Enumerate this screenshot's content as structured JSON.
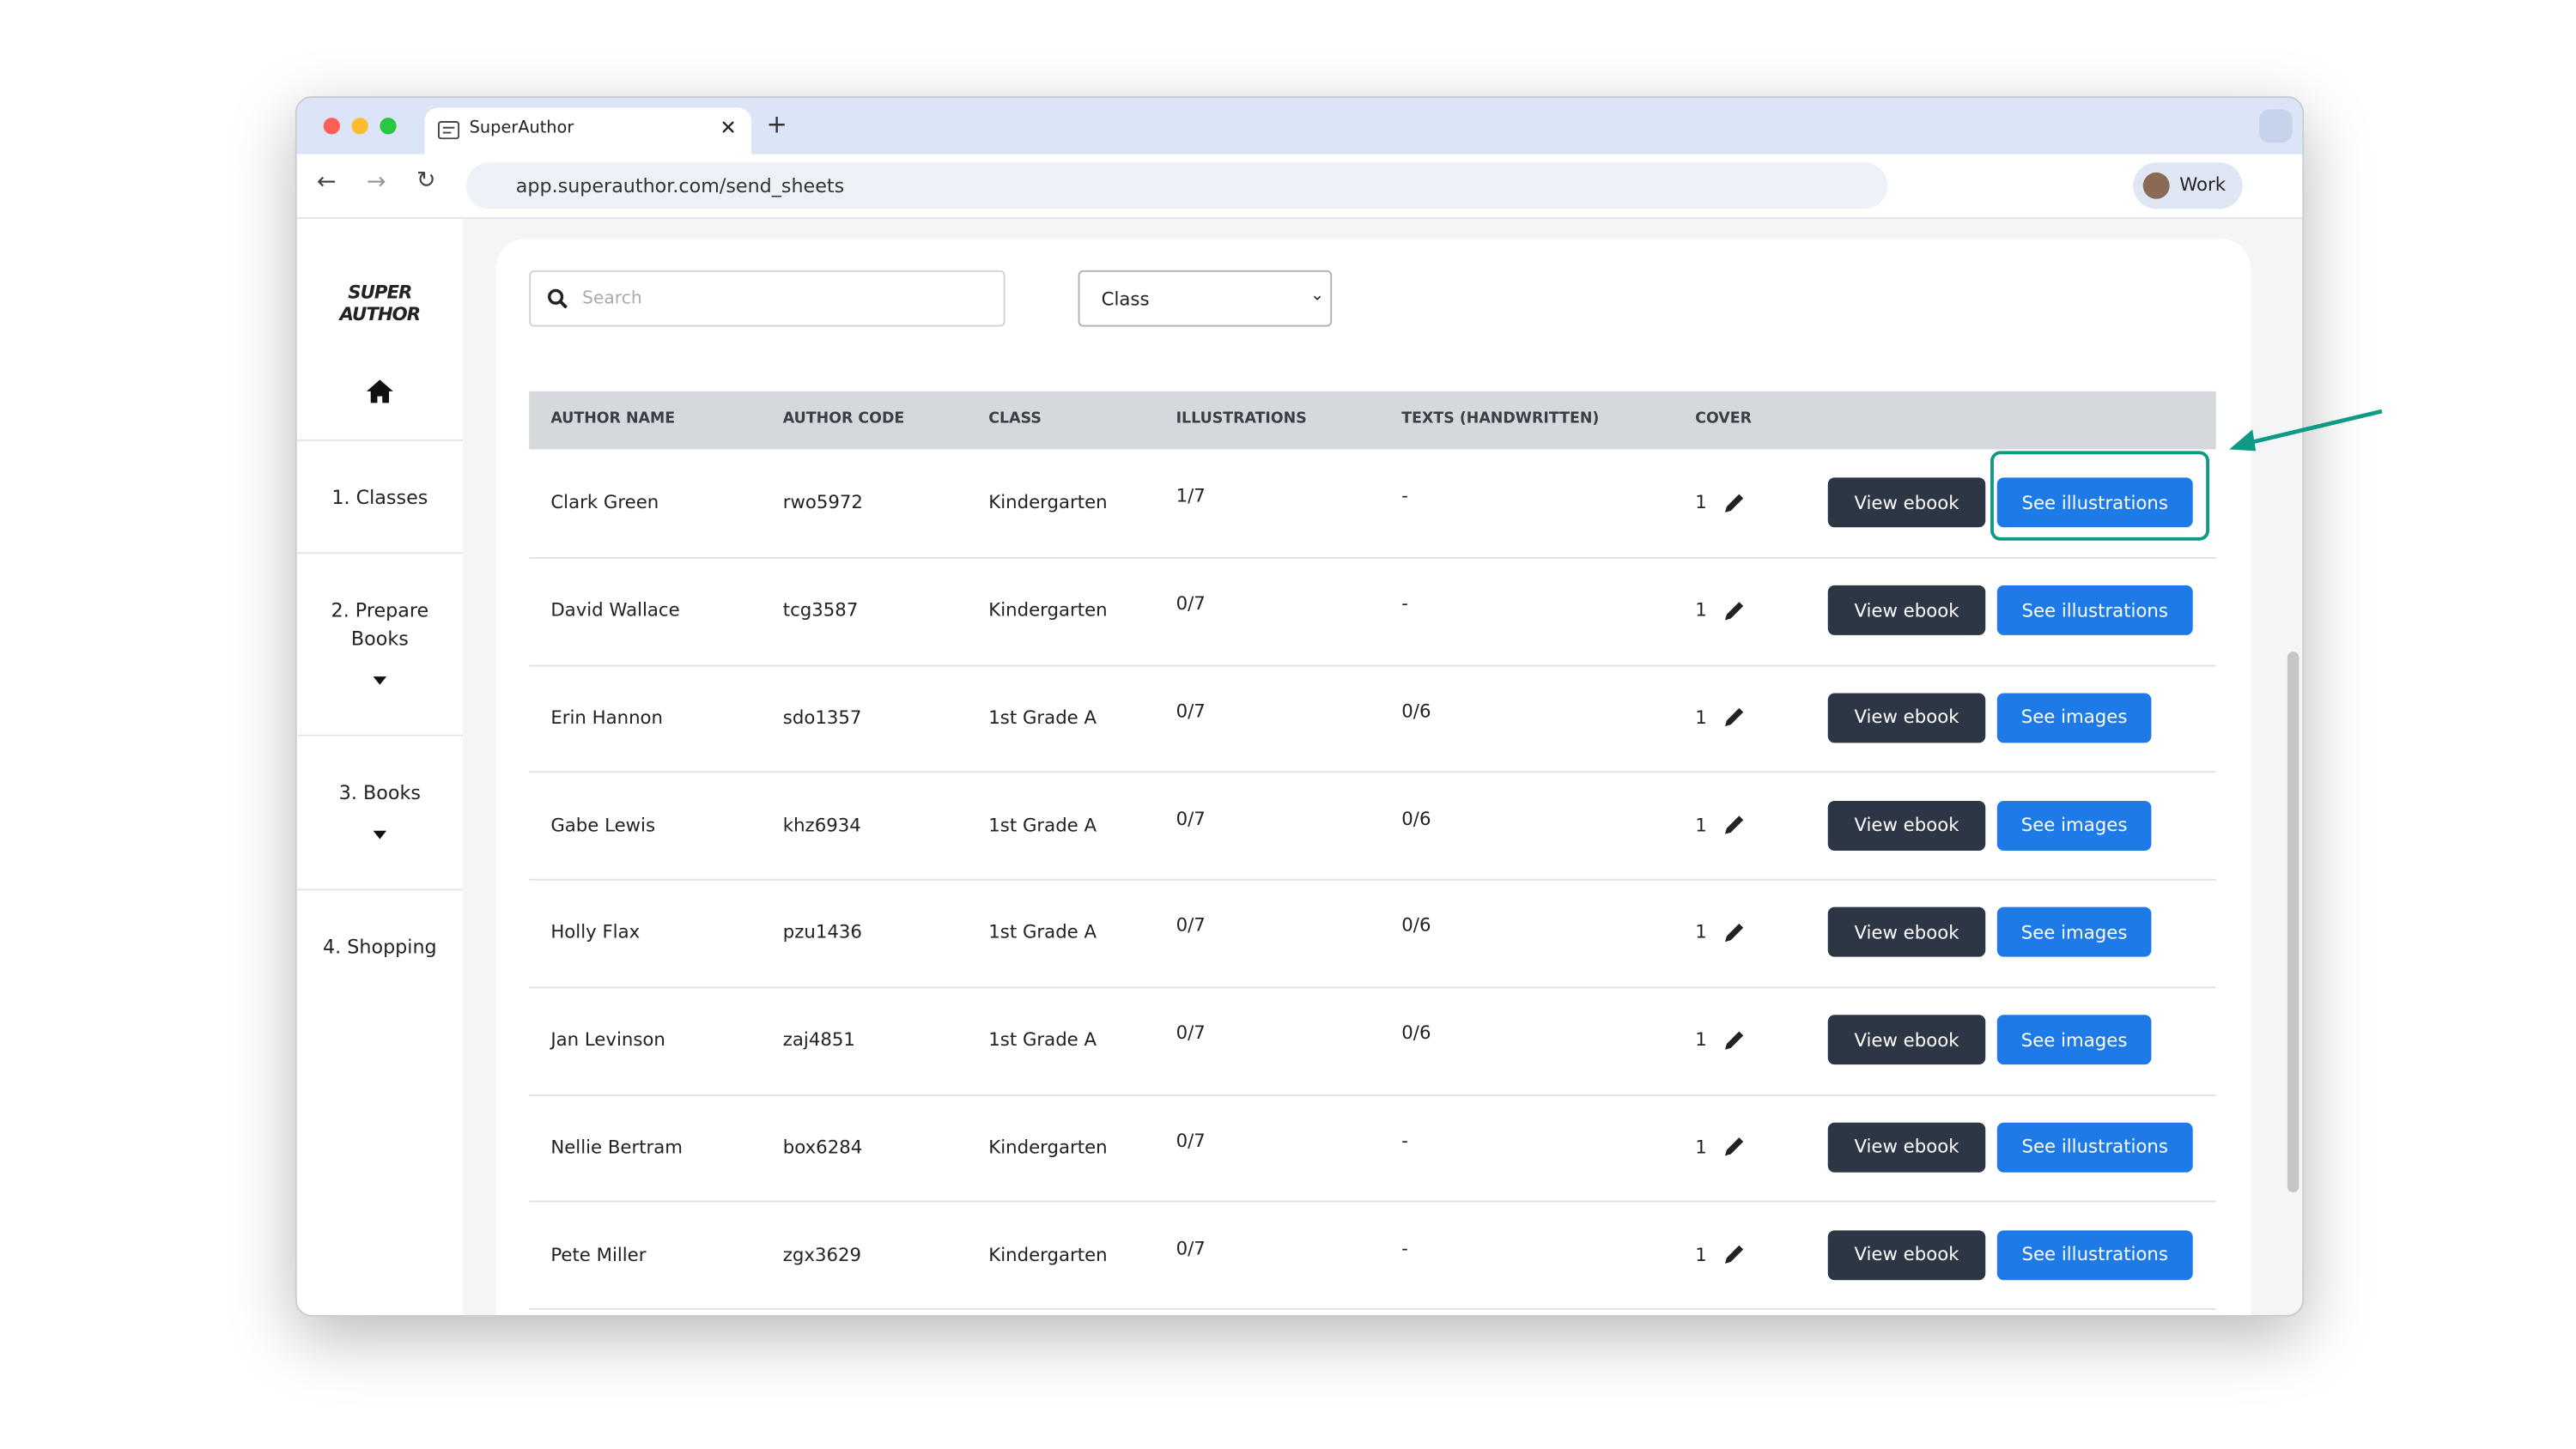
{
  "browser": {
    "tab_title": "SuperAuthor",
    "url": "app.superauthor.com/send_sheets",
    "profile": "Work"
  },
  "sidebar": {
    "logo": [
      "SUPER",
      "AUTHOR"
    ],
    "nav": [
      "1. Classes",
      "2. Prepare Books",
      "3. Books",
      "4. Shopping"
    ]
  },
  "filters": {
    "search_placeholder": "Search",
    "class_select": "Class"
  },
  "table": {
    "headers": [
      "AUTHOR NAME",
      "AUTHOR CODE",
      "CLASS",
      "ILLUSTRATIONS",
      "TEXTS (HANDWRITTEN)",
      "COVER"
    ],
    "rows": [
      {
        "author_name": "Clark Green",
        "author_code": "rwo5972",
        "class": "Kindergarten",
        "illustrations": "1/7",
        "texts": "-",
        "cover": "1",
        "actions": [
          "View ebook",
          "See illustrations"
        ]
      },
      {
        "author_name": "David Wallace",
        "author_code": "tcg3587",
        "class": "Kindergarten",
        "illustrations": "0/7",
        "texts": "-",
        "cover": "1",
        "actions": [
          "View ebook",
          "See illustrations"
        ]
      },
      {
        "author_name": "Erin Hannon",
        "author_code": "sdo1357",
        "class": "1st Grade A",
        "illustrations": "0/7",
        "texts": "0/6",
        "cover": "1",
        "actions": [
          "View ebook",
          "See images"
        ]
      },
      {
        "author_name": "Gabe Lewis",
        "author_code": "khz6934",
        "class": "1st Grade A",
        "illustrations": "0/7",
        "texts": "0/6",
        "cover": "1",
        "actions": [
          "View ebook",
          "See images"
        ]
      },
      {
        "author_name": "Holly Flax",
        "author_code": "pzu1436",
        "class": "1st Grade A",
        "illustrations": "0/7",
        "texts": "0/6",
        "cover": "1",
        "actions": [
          "View ebook",
          "See images"
        ]
      },
      {
        "author_name": "Jan Levinson",
        "author_code": "zaj4851",
        "class": "1st Grade A",
        "illustrations": "0/7",
        "texts": "0/6",
        "cover": "1",
        "actions": [
          "View ebook",
          "See images"
        ]
      },
      {
        "author_name": "Nellie Bertram",
        "author_code": "box6284",
        "class": "Kindergarten",
        "illustrations": "0/7",
        "texts": "-",
        "cover": "1",
        "actions": [
          "View ebook",
          "See illustrations"
        ]
      },
      {
        "author_name": "Pete Miller",
        "author_code": "zgx3629",
        "class": "Kindergarten",
        "illustrations": "0/7",
        "texts": "-",
        "cover": "1",
        "actions": [
          "View ebook",
          "See illustrations"
        ]
      }
    ]
  }
}
